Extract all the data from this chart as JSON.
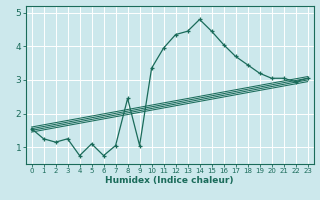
{
  "xlabel": "Humidex (Indice chaleur)",
  "bg_color": "#cce8ec",
  "grid_color": "#ffffff",
  "line_color": "#1a6b5a",
  "xlim": [
    -0.5,
    23.5
  ],
  "ylim": [
    0.5,
    5.2
  ],
  "xticks": [
    0,
    1,
    2,
    3,
    4,
    5,
    6,
    7,
    8,
    9,
    10,
    11,
    12,
    13,
    14,
    15,
    16,
    17,
    18,
    19,
    20,
    21,
    22,
    23
  ],
  "yticks": [
    1,
    2,
    3,
    4,
    5
  ],
  "main_x": [
    0,
    1,
    2,
    3,
    4,
    5,
    6,
    7,
    8,
    9,
    10,
    11,
    12,
    13,
    14,
    15,
    16,
    17,
    18,
    19,
    20,
    21,
    22,
    23
  ],
  "main_y": [
    1.55,
    1.25,
    1.15,
    1.25,
    0.75,
    1.1,
    0.75,
    1.05,
    2.45,
    1.05,
    3.35,
    3.95,
    4.35,
    4.45,
    4.8,
    4.45,
    4.05,
    3.7,
    3.45,
    3.2,
    3.05,
    3.05,
    2.95,
    3.05
  ],
  "reg_lines": [
    {
      "x": [
        0,
        23
      ],
      "y": [
        1.45,
        2.95
      ]
    },
    {
      "x": [
        0,
        23
      ],
      "y": [
        1.5,
        3.0
      ]
    },
    {
      "x": [
        0,
        23
      ],
      "y": [
        1.55,
        3.05
      ]
    },
    {
      "x": [
        0,
        23
      ],
      "y": [
        1.6,
        3.1
      ]
    }
  ]
}
